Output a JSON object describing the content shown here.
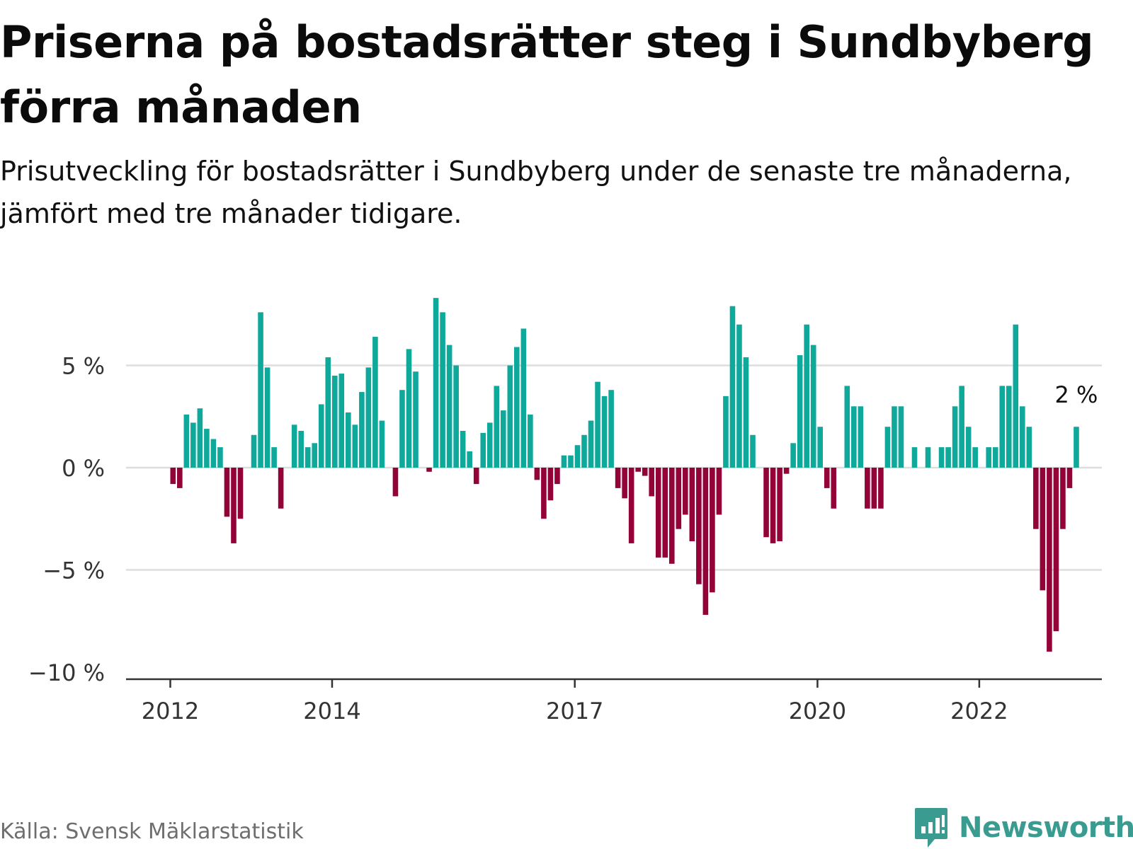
{
  "title": "Priserna på bostadsrätter steg i Sundbyberg förra månaden",
  "subtitle": "Prisutveckling för bostadsrätter i Sundbyberg under de senaste tre månaderna, jämfört med tre månader tidigare.",
  "source": "Källa: Svensk Mäklarstatistik",
  "brand": "Newsworthy",
  "colors": {
    "positive": "#0fa99c",
    "negative": "#930338",
    "grid": "#dddddd",
    "axis": "#333333",
    "brand": "#3a9c90"
  },
  "chart_data": {
    "type": "bar",
    "title": "Priserna på bostadsrätter steg i Sundbyberg förra månaden",
    "xlabel": "",
    "ylabel": "",
    "ylim": [
      -10,
      8.5
    ],
    "y_ticks": [
      5,
      0,
      -5,
      -10
    ],
    "y_tick_labels": [
      "5 %",
      "0 %",
      "−5 %",
      "−10 %"
    ],
    "x_ticks": [
      2012,
      2014,
      2017,
      2020,
      2022
    ],
    "x_tick_labels": [
      "2012",
      "2014",
      "2017",
      "2020",
      "2022"
    ],
    "grid": true,
    "annotation": {
      "text": "2 %",
      "value": 2
    },
    "start": "2012-01",
    "values": [
      -0.8,
      -1.0,
      2.6,
      2.2,
      2.9,
      1.9,
      1.4,
      1.0,
      -2.4,
      -3.7,
      -2.5,
      0.0,
      1.6,
      7.6,
      4.9,
      1.0,
      -2.0,
      0.0,
      2.1,
      1.8,
      1.0,
      1.2,
      3.1,
      5.4,
      4.5,
      4.6,
      2.7,
      2.1,
      3.7,
      4.9,
      6.4,
      2.3,
      0.0,
      -1.4,
      3.8,
      5.8,
      4.7,
      0.0,
      -0.2,
      8.3,
      7.6,
      6.0,
      5.0,
      1.8,
      0.8,
      -0.8,
      1.7,
      2.2,
      4.0,
      2.8,
      5.0,
      5.9,
      6.8,
      2.6,
      -0.6,
      -2.5,
      -1.6,
      -0.8,
      0.6,
      0.6,
      1.1,
      1.6,
      2.3,
      4.2,
      3.5,
      3.8,
      -1.0,
      -1.5,
      -3.7,
      -0.2,
      -0.4,
      -1.4,
      -4.4,
      -4.4,
      -4.7,
      -3.0,
      -2.3,
      -3.6,
      -5.7,
      -7.2,
      -6.1,
      -2.3,
      3.5,
      7.9,
      7.0,
      5.4,
      1.6,
      0.0,
      -3.4,
      -3.7,
      -3.6,
      -0.3,
      1.2,
      5.5,
      7.0,
      6.0,
      2.0,
      -1.0,
      -2.0,
      0.0,
      4.0,
      3.0,
      3.0,
      -2.0,
      -2.0,
      -2.0,
      2.0,
      3.0,
      3.0,
      0.0,
      1.0,
      0.0,
      1.0,
      0.0,
      1.0,
      1.0,
      3.0,
      4.0,
      2.0,
      1.0,
      0.0,
      1.0,
      1.0,
      4.0,
      4.0,
      7.0,
      3.0,
      2.0,
      -3.0,
      -6.0,
      -9.0,
      -8.0,
      -3.0,
      -1.0,
      2.0
    ]
  }
}
